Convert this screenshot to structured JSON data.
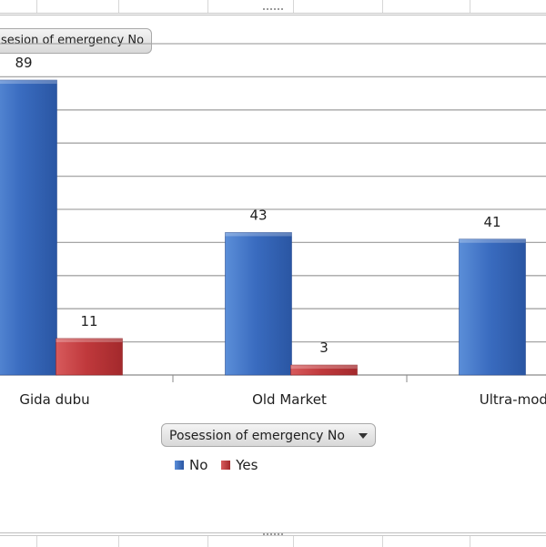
{
  "chart_data": {
    "type": "bar",
    "categories": [
      "Gida dubu",
      "Old Market",
      "Ultra-moderr"
    ],
    "series": [
      {
        "name": "No",
        "values": [
          89,
          43,
          41
        ],
        "color": "#3d6fc2"
      },
      {
        "name": "Yes",
        "values": [
          11,
          3,
          null
        ],
        "color": "#c0393c"
      }
    ],
    "data_labels": {
      "No": [
        "89",
        "43",
        "41"
      ],
      "Yes": [
        "11",
        "3",
        ""
      ]
    },
    "ylim": [
      0,
      100
    ],
    "grid": true,
    "legend_position": "bottom",
    "title": "",
    "xlabel": "",
    "ylabel": ""
  },
  "report_filter_label": "sesion of emergency No",
  "field_button_label": "Posession of emergency No",
  "legend": {
    "no_label": "No",
    "yes_label": "Yes",
    "no_color": "#3d6fc2",
    "yes_color": "#c0393c"
  }
}
